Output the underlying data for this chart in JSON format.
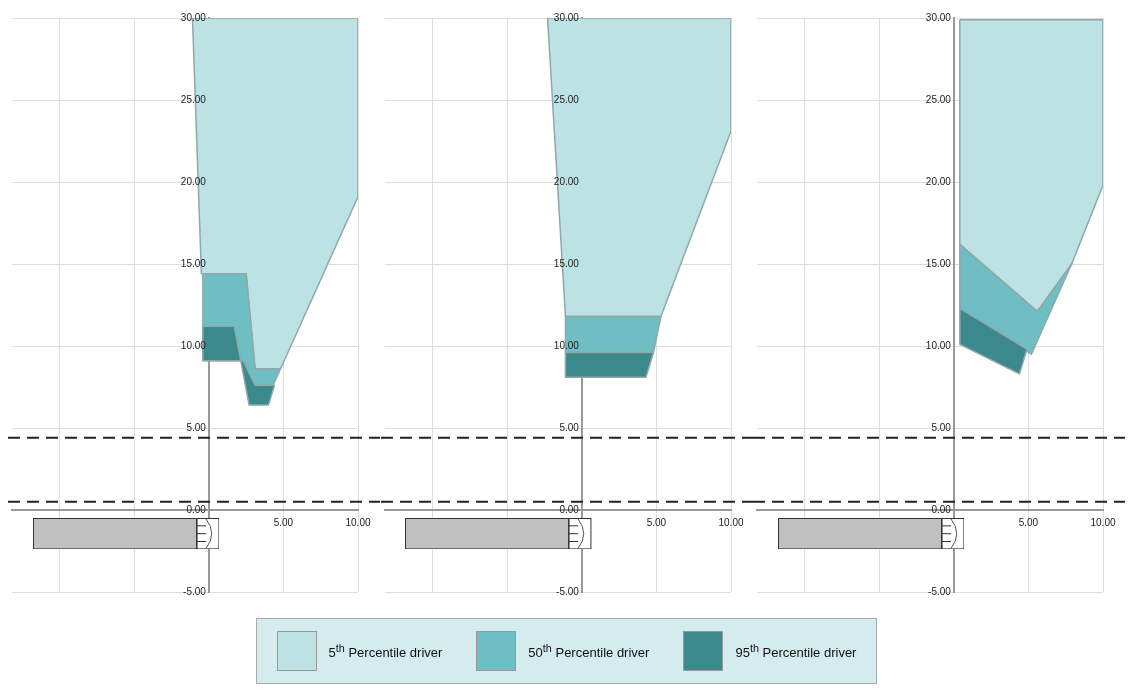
{
  "chart_data": [
    {
      "type": "area",
      "xlim": [
        -13.2,
        10
      ],
      "ylim": [
        -5,
        30
      ],
      "xticks": [
        {
          "value": -10,
          "label": null
        },
        {
          "value": -5,
          "label": null
        },
        {
          "value": 0,
          "label": null
        },
        {
          "value": 5,
          "label": "5.00"
        },
        {
          "value": 10,
          "label": "10.00"
        }
      ],
      "yticks": [
        {
          "value": -5,
          "label": "-5.00"
        },
        {
          "value": 0,
          "label": "0.00"
        },
        {
          "value": 5,
          "label": "5.00"
        },
        {
          "value": 10,
          "label": "10.00"
        },
        {
          "value": 15,
          "label": "15.00"
        },
        {
          "value": 20,
          "label": "20.00"
        },
        {
          "value": 25,
          "label": "25.00"
        },
        {
          "value": 30,
          "label": "30.00"
        }
      ],
      "grid": true,
      "legend": "bottom",
      "ref_lines": [
        {
          "axis": "y",
          "value": 4.4,
          "color": "#222222",
          "line_style": "dashed"
        },
        {
          "axis": "y",
          "value": 0.5,
          "color": "#222222",
          "line_style": "dashed"
        }
      ],
      "series": [
        {
          "name": "5$^{th}$ Percentile driver",
          "color": "#bde2e4",
          "x": [
            -1.1,
            10,
            10,
            4.8,
            3.1,
            2.5,
            -0.5,
            -1.1
          ],
          "values": [
            30,
            30,
            19.1,
            8.6,
            8.6,
            14.4,
            14.4,
            30
          ]
        },
        {
          "name": "50$^{th}$ Percentile driver",
          "color": "#6fbec4",
          "x": [
            -0.4,
            2.5,
            3.1,
            4.8,
            4.3,
            3.1,
            2.3,
            -0.4,
            -0.4
          ],
          "values": [
            14.4,
            14.4,
            8.6,
            8.6,
            7.6,
            7.6,
            9.1,
            9.1,
            14.4
          ]
        },
        {
          "name": "95$^{th}$ Percentile driver",
          "color": "#3b898c",
          "x": [
            -0.4,
            1.7,
            2.7,
            4.0,
            4.4,
            3.1,
            2.3,
            -0.4,
            -0.4
          ],
          "values": [
            11.2,
            11.2,
            6.4,
            6.4,
            7.6,
            7.6,
            9.1,
            9.1,
            11.2
          ]
        }
      ]
    },
    {
      "type": "area",
      "xlim": [
        -13.2,
        10
      ],
      "ylim": [
        -5,
        30
      ],
      "xticks": [
        {
          "value": -10,
          "label": null
        },
        {
          "value": -5,
          "label": null
        },
        {
          "value": 0,
          "label": null
        },
        {
          "value": 5,
          "label": "5.00"
        },
        {
          "value": 10,
          "label": "10.00"
        }
      ],
      "yticks": [
        {
          "value": -5,
          "label": "-5.00"
        },
        {
          "value": 0,
          "label": "0.00"
        },
        {
          "value": 5,
          "label": "5.00"
        },
        {
          "value": 10,
          "label": "10.00"
        },
        {
          "value": 15,
          "label": "15.00"
        },
        {
          "value": 20,
          "label": "20.00"
        },
        {
          "value": 25,
          "label": "25.00"
        },
        {
          "value": 30,
          "label": "30.00"
        }
      ],
      "grid": true,
      "ref_lines": [
        {
          "axis": "y",
          "value": 4.4,
          "color": "#222222",
          "line_style": "dashed"
        },
        {
          "axis": "y",
          "value": 0.5,
          "color": "#222222",
          "line_style": "dashed"
        }
      ],
      "series": [
        {
          "color": "#bde2e4",
          "x": [
            -2.3,
            10,
            10,
            5.3,
            -1.1,
            -2.3
          ],
          "values": [
            30,
            30,
            23.1,
            11.8,
            11.8,
            30
          ]
        },
        {
          "color": "#6fbec4",
          "x": [
            -1.1,
            5.3,
            4.8,
            -1.1,
            -1.1
          ],
          "values": [
            11.8,
            11.8,
            9.6,
            9.6,
            11.8
          ]
        },
        {
          "color": "#3b898c",
          "x": [
            -1.1,
            4.8,
            4.3,
            -1.1,
            -1.1
          ],
          "values": [
            9.6,
            9.6,
            8.1,
            8.1,
            9.6
          ]
        }
      ]
    },
    {
      "type": "area",
      "xlim": [
        -13.2,
        10
      ],
      "ylim": [
        -5,
        30
      ],
      "xticks": [
        {
          "value": -10,
          "label": null
        },
        {
          "value": -5,
          "label": null
        },
        {
          "value": 0,
          "label": null
        },
        {
          "value": 5,
          "label": "5.00"
        },
        {
          "value": 10,
          "label": "10.00"
        }
      ],
      "yticks": [
        {
          "value": -5,
          "label": "-5.00"
        },
        {
          "value": 0,
          "label": "0.00"
        },
        {
          "value": 5,
          "label": "5.00"
        },
        {
          "value": 10,
          "label": "10.00"
        },
        {
          "value": 15,
          "label": "15.00"
        },
        {
          "value": 20,
          "label": "20.00"
        },
        {
          "value": 25,
          "label": "25.00"
        },
        {
          "value": 30,
          "label": "30.00"
        }
      ],
      "grid": true,
      "ref_lines": [
        {
          "axis": "y",
          "value": 4.4,
          "color": "#222222",
          "line_style": "dashed"
        },
        {
          "axis": "y",
          "value": 0.5,
          "color": "#222222",
          "line_style": "dashed"
        }
      ],
      "series": [
        {
          "color": "#bde2e4",
          "x": [
            0.4,
            10,
            10,
            7.9,
            5.6,
            0.4,
            0.4
          ],
          "values": [
            29.9,
            29.9,
            19.8,
            15.0,
            12.1,
            16.2,
            29.9
          ]
        },
        {
          "color": "#6fbec4",
          "x": [
            0.4,
            5.6,
            7.9,
            5.2,
            0.4,
            0.4
          ],
          "values": [
            16.2,
            12.1,
            15.0,
            9.5,
            12.3,
            16.2
          ]
        },
        {
          "color": "#3b898c",
          "x": [
            0.4,
            4.9,
            4.4,
            0.4,
            0.4
          ],
          "values": [
            12.3,
            9.8,
            8.3,
            10.1,
            12.3
          ]
        }
      ]
    }
  ]
}
